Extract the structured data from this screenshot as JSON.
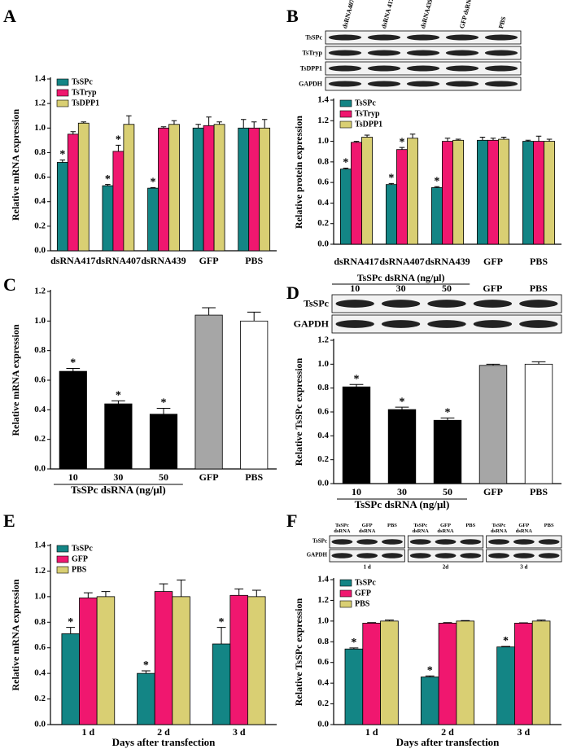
{
  "chart_data": [
    {
      "type": "bar",
      "panel": "A",
      "ylabel": "Relative mRNA expression",
      "categories": [
        "dsRNA417",
        "dsRNA407",
        "dsRNA439",
        "GFP",
        "PBS"
      ],
      "series": [
        {
          "name": "TsSPc",
          "color": "#138585",
          "values": [
            0.72,
            0.53,
            0.51,
            1.0,
            1.0
          ],
          "errors": [
            0.02,
            0.01,
            0.005,
            0.03,
            0.07
          ],
          "significance": [
            "*",
            "*",
            "*",
            null,
            null
          ]
        },
        {
          "name": "TsTryp",
          "color": "#f0176f",
          "values": [
            0.95,
            0.81,
            1.0,
            1.02,
            1.0
          ],
          "errors": [
            0.02,
            0.05,
            0.01,
            0.07,
            0.05
          ],
          "significance": [
            null,
            "*",
            null,
            null,
            null
          ]
        },
        {
          "name": "TsDPP1",
          "color": "#d9cf73",
          "values": [
            1.04,
            1.03,
            1.03,
            1.03,
            1.0
          ],
          "errors": [
            0.01,
            0.07,
            0.03,
            0.02,
            0.07
          ],
          "significance": [
            null,
            null,
            null,
            null,
            null
          ]
        }
      ],
      "ylim": [
        0,
        1.4
      ],
      "yticks": [
        {
          "value": 0,
          "label": "0.0"
        },
        0.2,
        0.4,
        0.6,
        0.8,
        {
          "value": 1,
          "label": "1.0"
        },
        1.2,
        1.4
      ],
      "legend": "top-left"
    },
    {
      "type": "bar",
      "panel": "B",
      "ylabel": "Relative protein expression",
      "blot": {
        "lanes": [
          "dsRNA407",
          "dsRNA 417",
          "dsRNA439",
          "GFP dsRNA",
          "PBS"
        ],
        "rows": [
          "TsSPc",
          "TsTryp",
          "TsDPP1",
          "GAPDH"
        ]
      },
      "categories": [
        "dsRNA417",
        "dsRNA407",
        "dsRNA439",
        "GFP",
        "PBS"
      ],
      "series": [
        {
          "name": "TsSPc",
          "color": "#138585",
          "values": [
            0.73,
            0.58,
            0.55,
            1.01,
            1.0
          ],
          "errors": [
            0.01,
            0.01,
            0.01,
            0.03,
            0.01
          ],
          "significance": [
            "*",
            "*",
            "*",
            null,
            null
          ]
        },
        {
          "name": "TsTryp",
          "color": "#f0176f",
          "values": [
            0.99,
            0.92,
            1.0,
            1.01,
            1.0
          ],
          "errors": [
            0.01,
            0.02,
            0.03,
            0.02,
            0.05
          ],
          "significance": [
            null,
            "*",
            null,
            null,
            null
          ]
        },
        {
          "name": "TsDPP1",
          "color": "#d9cf73",
          "values": [
            1.04,
            1.03,
            1.01,
            1.02,
            1.0
          ],
          "errors": [
            0.02,
            0.04,
            0.01,
            0.02,
            0.02
          ],
          "significance": [
            null,
            null,
            null,
            null,
            null
          ]
        }
      ],
      "ylim": [
        0,
        1.4
      ],
      "yticks": [
        {
          "value": 0,
          "label": "0.0"
        },
        0.2,
        0.4,
        0.6,
        0.8,
        {
          "value": 1,
          "label": "1.0"
        },
        1.2,
        1.4
      ],
      "legend": "top-left"
    },
    {
      "type": "bar",
      "panel": "C",
      "ylabel": "Relative mRNA expression",
      "group_label": "TsSPc dsRNA (ng/μl)",
      "categories": [
        "10",
        "30",
        "50",
        "GFP",
        "PBS"
      ],
      "values": [
        0.66,
        0.44,
        0.37,
        1.04,
        1.0
      ],
      "errors": [
        0.02,
        0.02,
        0.04,
        0.05,
        0.06
      ],
      "significance": [
        "*",
        "*",
        "*",
        null,
        null
      ],
      "colors": [
        "#000000",
        "#000000",
        "#000000",
        "#a6a6a6",
        "#ffffff"
      ],
      "ylim": [
        0,
        1.2
      ],
      "yticks": [
        {
          "value": 0,
          "label": "0.0"
        },
        0.2,
        0.4,
        0.6,
        0.8,
        {
          "value": 1,
          "label": "1.0"
        },
        1.2
      ]
    },
    {
      "type": "bar",
      "panel": "D",
      "ylabel": "Relative TsSPc expression",
      "group_label": "TsSPc dsRNA (ng/μl)",
      "blot": {
        "header": "TsSPc dsRNA (ng/μl)",
        "lanes": [
          "10",
          "30",
          "50",
          "GFP",
          "PBS"
        ],
        "rows": [
          "TsSPc",
          "GAPDH"
        ]
      },
      "categories": [
        "10",
        "30",
        "50",
        "GFP",
        "PBS"
      ],
      "values": [
        0.81,
        0.62,
        0.53,
        0.99,
        1.0
      ],
      "errors": [
        0.02,
        0.02,
        0.02,
        0.01,
        0.02
      ],
      "significance": [
        "*",
        "*",
        "*",
        null,
        null
      ],
      "colors": [
        "#000000",
        "#000000",
        "#000000",
        "#a6a6a6",
        "#ffffff"
      ],
      "ylim": [
        0,
        1.2
      ],
      "yticks": [
        {
          "value": 0,
          "label": "0.0"
        },
        0.2,
        0.4,
        0.6,
        0.8,
        {
          "value": 1,
          "label": "1.0"
        },
        1.2
      ]
    },
    {
      "type": "bar",
      "panel": "E",
      "ylabel": "Relative mRNA expression",
      "xlabel": "Days after transfection",
      "categories": [
        "1 d",
        "2 d",
        "3 d"
      ],
      "series": [
        {
          "name": "TsSPc",
          "color": "#138585",
          "values": [
            0.71,
            0.4,
            0.63
          ],
          "errors": [
            0.05,
            0.02,
            0.13
          ],
          "significance": [
            "*",
            "*",
            "*"
          ]
        },
        {
          "name": "GFP",
          "color": "#f0176f",
          "values": [
            0.99,
            1.04,
            1.01
          ],
          "errors": [
            0.04,
            0.06,
            0.05
          ],
          "significance": [
            null,
            null,
            null
          ]
        },
        {
          "name": "PBS",
          "color": "#d9cf73",
          "values": [
            1.0,
            1.0,
            1.0
          ],
          "errors": [
            0.04,
            0.13,
            0.05
          ],
          "significance": [
            null,
            null,
            null
          ]
        }
      ],
      "ylim": [
        0,
        1.4
      ],
      "yticks": [
        {
          "value": 0,
          "label": "0.0"
        },
        0.2,
        0.4,
        0.6,
        0.8,
        {
          "value": 1,
          "label": "1.0"
        },
        1.2,
        1.4
      ],
      "legend": "top-left"
    },
    {
      "type": "bar",
      "panel": "F",
      "ylabel": "Relative TsSPc expression",
      "xlabel": "Days after transfection",
      "blot": {
        "rows": [
          "TsSPc",
          "GAPDH"
        ],
        "groups": [
          {
            "label": "1 d",
            "lanes": [
              [
                "TsSPc",
                "dsRNA"
              ],
              [
                "GFP",
                "dsRNA"
              ],
              [
                "PBS"
              ]
            ]
          },
          {
            "label": "2d",
            "lanes": [
              [
                "TsSPc",
                "dsRNA"
              ],
              [
                "GFP",
                "dsRNA"
              ],
              [
                "PBS"
              ]
            ]
          },
          {
            "label": "3 d",
            "lanes": [
              [
                "TsSPc",
                "dsRNA"
              ],
              [
                "GFP",
                "dsRNA"
              ],
              [
                "PBS"
              ]
            ]
          }
        ]
      },
      "categories": [
        "1 d",
        "2 d",
        "3 d"
      ],
      "series": [
        {
          "name": "TsSPc",
          "color": "#138585",
          "values": [
            0.73,
            0.46,
            0.75
          ],
          "errors": [
            0.01,
            0.01,
            0.005
          ],
          "significance": [
            "*",
            "*",
            "*"
          ]
        },
        {
          "name": "GFP",
          "color": "#f0176f",
          "values": [
            0.98,
            0.98,
            0.98
          ],
          "errors": [
            0.005,
            0.005,
            0.003
          ],
          "significance": [
            null,
            null,
            null
          ]
        },
        {
          "name": "PBS",
          "color": "#d9cf73",
          "values": [
            1.0,
            1.0,
            1.0
          ],
          "errors": [
            0.01,
            0.005,
            0.01
          ],
          "significance": [
            null,
            null,
            null
          ]
        }
      ],
      "ylim": [
        0,
        1.4
      ],
      "yticks": [
        {
          "value": 0,
          "label": "0.0"
        },
        0.2,
        0.4,
        0.6,
        0.8,
        {
          "value": 1,
          "label": "1.0"
        },
        1.2,
        1.4
      ],
      "legend": "top-left"
    }
  ]
}
